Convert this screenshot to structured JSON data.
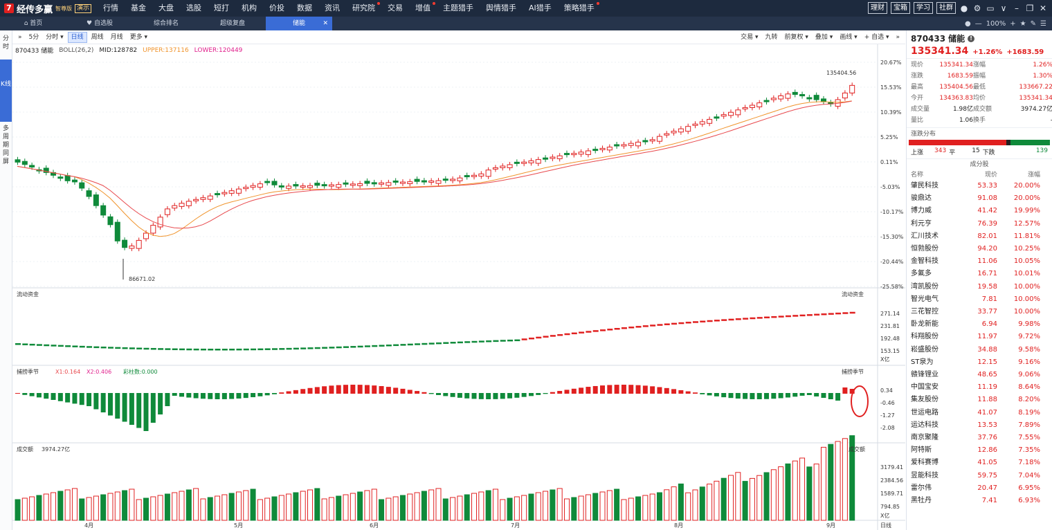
{
  "app": {
    "logo_text": "经传多赢",
    "edition": "智尊版",
    "badge": "演示"
  },
  "top_nav": [
    {
      "label": "行情",
      "dot": false
    },
    {
      "label": "基金",
      "dot": false
    },
    {
      "label": "大盘",
      "dot": false
    },
    {
      "label": "选股",
      "dot": false
    },
    {
      "label": "短打",
      "dot": false
    },
    {
      "label": "机构",
      "dot": false
    },
    {
      "label": "价投",
      "dot": false
    },
    {
      "label": "数据",
      "dot": false
    },
    {
      "label": "资讯",
      "dot": false
    },
    {
      "label": "研究院",
      "dot": true
    },
    {
      "label": "交易",
      "dot": false
    },
    {
      "label": "增值",
      "dot": true
    },
    {
      "label": "主题猎手",
      "dot": false
    },
    {
      "label": "舆情猎手",
      "dot": false
    },
    {
      "label": "AI猎手",
      "dot": false
    },
    {
      "label": "策略猎手",
      "dot": true
    }
  ],
  "top_right_buttons": [
    "理财",
    "宝箱",
    "学习",
    "社群"
  ],
  "tabs": [
    {
      "label": "首页",
      "icon": "home-icon"
    },
    {
      "label": "自选股",
      "icon": "heart-icon"
    },
    {
      "label": "综合排名"
    },
    {
      "label": "超级复盘"
    },
    {
      "label": "储能",
      "active": true
    }
  ],
  "zoom": "100%",
  "left_side": [
    "分时",
    "K线",
    "多周期同屏"
  ],
  "chart_toolbar": {
    "left": [
      "5分",
      "分时 ▾",
      "日线",
      "周线",
      "月线",
      "更多 ▾"
    ],
    "active": "日线",
    "right": [
      "交易 ▾",
      "九转",
      "前复权 ▾",
      "叠加 ▾",
      "画线 ▾",
      "+ 自选 ▾"
    ]
  },
  "boll_info": {
    "code_name": "870433 储能",
    "indicator": "BOLL(26,2)",
    "mid": "MID:128782",
    "upper": "UPPER:137116",
    "lower": "LOWER:120449"
  },
  "main_pane": {
    "y_ticks": [
      "20.67%",
      "15.53%",
      "10.39%",
      "5.25%",
      "0.11%",
      "-5.03%",
      "-10.17%",
      "-15.30%",
      "-20.44%",
      "-25.58%"
    ],
    "high_label": "135404.56",
    "low_label": "86671.02"
  },
  "flow_pane": {
    "title": "流动资金",
    "title_right": "流动资金",
    "y_ticks": [
      "271.14",
      "231.81",
      "192.48",
      "153.15"
    ],
    "unit": "X亿"
  },
  "cycle_pane": {
    "title": "捕捞季节",
    "x1": "X1:0.164",
    "x2": "X2:0.406",
    "caizhu": "彩柱数:0.000",
    "title_right": "捕捞季节",
    "y_ticks": [
      "0.34",
      "-0.46",
      "-1.27",
      "-2.08"
    ]
  },
  "volume_pane": {
    "title": "成交额",
    "value": "3974.27亿",
    "title_right": "成交额",
    "y_ticks": [
      "3179.41",
      "2384.56",
      "1589.71",
      "794.85"
    ],
    "unit": "X亿"
  },
  "x_axis": {
    "months": [
      "4月",
      "5月",
      "6月",
      "7月",
      "8月",
      "9月"
    ],
    "period": "日线"
  },
  "quote": {
    "code": "870433",
    "name": "储能",
    "price": "135341.34",
    "change_pct": "+1.26%",
    "change": "+1683.59",
    "rows": [
      [
        "现价",
        "135341.34",
        "涨幅",
        "1.26%"
      ],
      [
        "涨跌",
        "1683.59",
        "振幅",
        "1.30%"
      ],
      [
        "最高",
        "135404.56",
        "最低",
        "133667.22"
      ],
      [
        "今开",
        "134363.83",
        "均价",
        "135341.34"
      ],
      [
        "成交量",
        "1.98亿",
        "成交额",
        "3974.27亿"
      ],
      [
        "量比",
        "1.06",
        "换手",
        "-"
      ]
    ],
    "dist_title": "涨跌分布",
    "up_label": "上涨",
    "up": "343",
    "flat_label": "平",
    "flat": "15",
    "down_label": "下跌",
    "down": "139"
  },
  "components": {
    "title": "成分股",
    "headers": [
      "名称",
      "现价",
      "涨幅"
    ],
    "rows": [
      [
        "肇民科技",
        "53.33",
        "20.00%"
      ],
      [
        "骏鼎达",
        "91.08",
        "20.00%"
      ],
      [
        "博力威",
        "41.42",
        "19.99%"
      ],
      [
        "利元亨",
        "76.39",
        "12.57%"
      ],
      [
        "汇川技术",
        "82.01",
        "11.81%"
      ],
      [
        "恒勃股份",
        "94.20",
        "10.25%"
      ],
      [
        "金智科技",
        "11.06",
        "10.05%"
      ],
      [
        "多氟多",
        "16.71",
        "10.01%"
      ],
      [
        "湾凯股份",
        "19.58",
        "10.00%"
      ],
      [
        "智光电气",
        "7.81",
        "10.00%"
      ],
      [
        "三花智控",
        "33.77",
        "10.00%"
      ],
      [
        "卧龙新能",
        "6.94",
        "9.98%"
      ],
      [
        "科翔股份",
        "11.97",
        "9.72%"
      ],
      [
        "崧盛股份",
        "34.88",
        "9.58%"
      ],
      [
        "ST泉为",
        "12.15",
        "9.16%"
      ],
      [
        "赣锋锂业",
        "48.65",
        "9.06%"
      ],
      [
        "中国宝安",
        "11.19",
        "8.64%"
      ],
      [
        "集友股份",
        "11.88",
        "8.20%"
      ],
      [
        "世运电路",
        "41.07",
        "8.19%"
      ],
      [
        "运达科技",
        "13.53",
        "7.89%"
      ],
      [
        "南京聚隆",
        "37.76",
        "7.55%"
      ],
      [
        "阿特斯",
        "12.86",
        "7.35%"
      ],
      [
        "爱科赛博",
        "41.05",
        "7.18%"
      ],
      [
        "昱能科技",
        "59.75",
        "7.04%"
      ],
      [
        "雷尔伟",
        "20.47",
        "6.95%"
      ],
      [
        "黑牡丹",
        "7.41",
        "6.93%"
      ]
    ]
  },
  "colors": {
    "up": "#e02020",
    "down": "#0f8a3a",
    "accent": "#3a6cd6",
    "ma_orange": "#f0932b",
    "ma_red": "#e8484c"
  }
}
